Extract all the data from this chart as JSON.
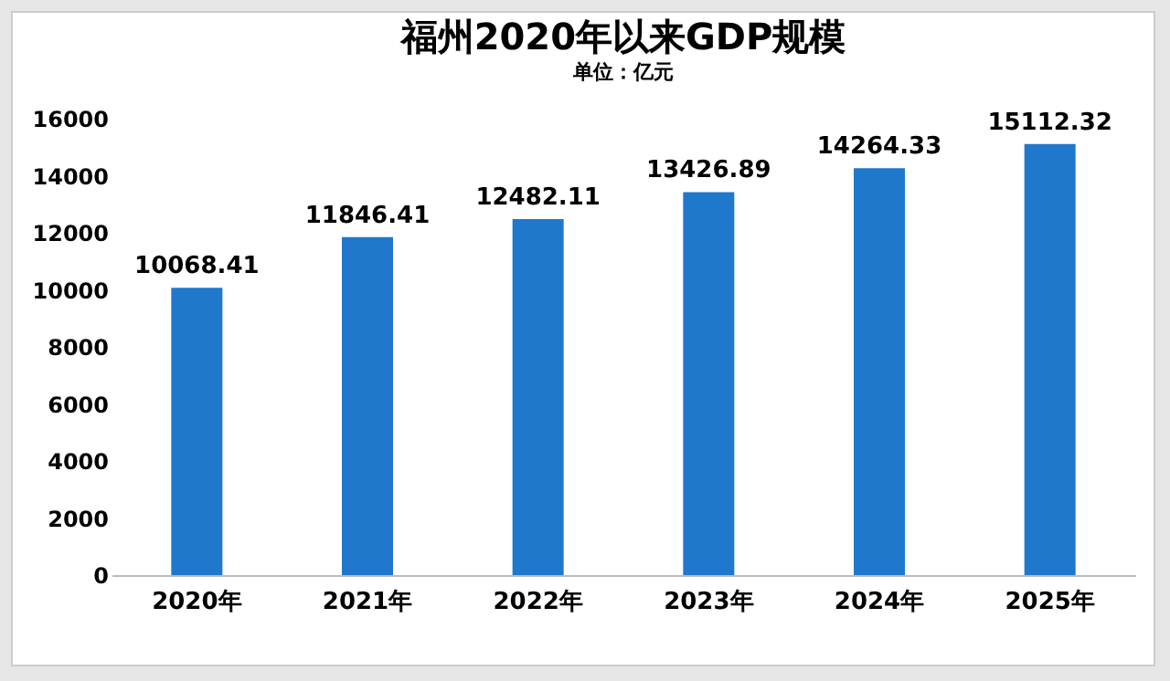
{
  "chart_data": {
    "type": "bar",
    "title": "福州2020年以来GDP规模",
    "subtitle": "单位：亿元",
    "categories": [
      "2020年",
      "2021年",
      "2022年",
      "2023年",
      "2024年",
      "2025年"
    ],
    "values": [
      10068.41,
      11846.41,
      12482.11,
      13426.89,
      14264.33,
      15112.32
    ],
    "color": "#1f78cc",
    "ylim": [
      0,
      16000
    ],
    "yticks": [
      0,
      2000,
      4000,
      6000,
      8000,
      10000,
      12000,
      14000,
      16000
    ],
    "grid": false,
    "data_labels": true
  }
}
